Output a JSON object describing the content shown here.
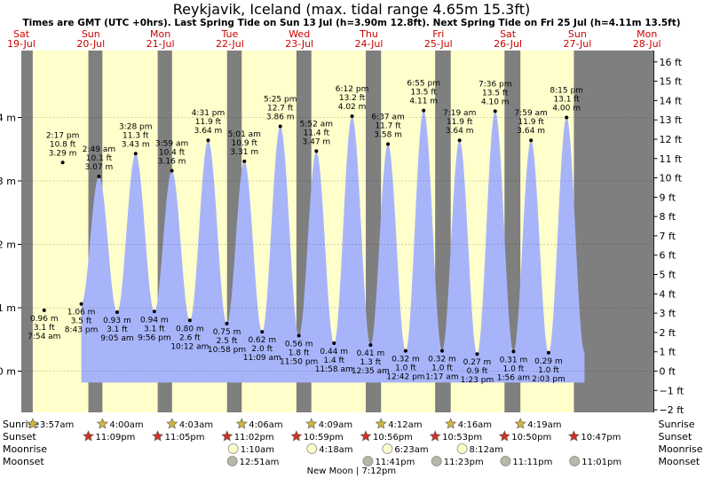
{
  "chart_data": {
    "type": "area",
    "title": "Reykjavik, Iceland (max. tidal range 4.65m 15.3ft)",
    "subtitle": "Times are GMT (UTC +0hrs). Last Spring Tide on Sun 13 Jul (h=3.90m 12.8ft). Next Spring Tide on Fri 25 Jul (h=4.11m 13.5ft)",
    "days": [
      {
        "dow": "Sat",
        "date": "19-Jul"
      },
      {
        "dow": "Sun",
        "date": "20-Jul"
      },
      {
        "dow": "Mon",
        "date": "21-Jul"
      },
      {
        "dow": "Tue",
        "date": "22-Jul"
      },
      {
        "dow": "Wed",
        "date": "23-Jul"
      },
      {
        "dow": "Thu",
        "date": "24-Jul"
      },
      {
        "dow": "Fri",
        "date": "25-Jul"
      },
      {
        "dow": "Sat",
        "date": "26-Jul"
      },
      {
        "dow": "Sun",
        "date": "27-Jul"
      },
      {
        "dow": "Mon",
        "date": "28-Jul"
      }
    ],
    "y_left": {
      "unit": "m",
      "range": [
        -0.6,
        4.95
      ],
      "ticks": [
        0,
        1,
        2,
        3,
        4
      ],
      "tick_labels": [
        "0 m",
        "1 m",
        "2 m",
        "3 m",
        "4 m"
      ]
    },
    "y_right": {
      "unit": "ft",
      "range": [
        -2,
        16
      ],
      "ticks": [
        -2,
        -1,
        0,
        1,
        2,
        3,
        4,
        5,
        6,
        7,
        8,
        9,
        10,
        11,
        12,
        13,
        14,
        15,
        16
      ],
      "tick_labels": [
        "−2 ft",
        "−1 ft",
        "0 ft",
        "1 ft",
        "2 ft",
        "3 ft",
        "4 ft",
        "5 ft",
        "6 ft",
        "7 ft",
        "8 ft",
        "9 ft",
        "10 ft",
        "11 ft",
        "12 ft",
        "13 ft",
        "14 ft",
        "15 ft",
        "16 ft"
      ]
    },
    "tides": [
      {
        "day": 0,
        "time": "7:54 am",
        "type": "low",
        "m": 0.96,
        "labels": [
          "0.96 m",
          "3.1 ft",
          "7:54 am"
        ]
      },
      {
        "day": 0,
        "time": "2:17 pm",
        "type": "high",
        "m": 3.29,
        "labels": [
          "2:17 pm",
          "10.8 ft",
          "3.29 m"
        ]
      },
      {
        "day": 0,
        "time": "8:43 pm",
        "type": "low",
        "m": 1.06,
        "labels": [
          "1.06 m",
          "3.5 ft",
          "8:43 pm"
        ]
      },
      {
        "day": 1,
        "time": "2:49 am",
        "type": "high",
        "m": 3.07,
        "labels": [
          "2:49 am",
          "10.1 ft",
          "3.07 m"
        ]
      },
      {
        "day": 1,
        "time": "9:05 am",
        "type": "low",
        "m": 0.93,
        "labels": [
          "0.93 m",
          "3.1 ft",
          "9:05 am"
        ]
      },
      {
        "day": 1,
        "time": "3:28 pm",
        "type": "high",
        "m": 3.43,
        "labels": [
          "3:28 pm",
          "11.3 ft",
          "3.43 m"
        ]
      },
      {
        "day": 1,
        "time": "9:56 pm",
        "type": "low",
        "m": 0.94,
        "labels": [
          "0.94 m",
          "3.1 ft",
          "9:56 pm"
        ]
      },
      {
        "day": 2,
        "time": "3:59 am",
        "type": "high",
        "m": 3.16,
        "labels": [
          "3:59 am",
          "10.4 ft",
          "3.16 m"
        ]
      },
      {
        "day": 2,
        "time": "10:12 am",
        "type": "low",
        "m": 0.8,
        "labels": [
          "0.80 m",
          "2.6 ft",
          "10:12 am"
        ]
      },
      {
        "day": 2,
        "time": "4:31 pm",
        "type": "high",
        "m": 3.64,
        "labels": [
          "4:31 pm",
          "11.9 ft",
          "3.64 m"
        ]
      },
      {
        "day": 2,
        "time": "10:58 pm",
        "type": "low",
        "m": 0.75,
        "labels": [
          "0.75 m",
          "2.5 ft",
          "10:58 pm"
        ]
      },
      {
        "day": 3,
        "time": "5:01 am",
        "type": "high",
        "m": 3.31,
        "labels": [
          "5:01 am",
          "10.9 ft",
          "3.31 m"
        ]
      },
      {
        "day": 3,
        "time": "11:09 am",
        "type": "low",
        "m": 0.62,
        "labels": [
          "0.62 m",
          "2.0 ft",
          "11:09 am"
        ]
      },
      {
        "day": 3,
        "time": "5:25 pm",
        "type": "high",
        "m": 3.86,
        "labels": [
          "5:25 pm",
          "12.7 ft",
          "3.86 m"
        ]
      },
      {
        "day": 3,
        "time": "11:50 pm",
        "type": "low",
        "m": 0.56,
        "labels": [
          "0.56 m",
          "1.8 ft",
          "11:50 pm"
        ]
      },
      {
        "day": 4,
        "time": "5:52 am",
        "type": "high",
        "m": 3.47,
        "labels": [
          "5:52 am",
          "11.4 ft",
          "3.47 m"
        ]
      },
      {
        "day": 4,
        "time": "11:58 am",
        "type": "low",
        "m": 0.44,
        "labels": [
          "0.44 m",
          "1.4 ft",
          "11:58 am"
        ]
      },
      {
        "day": 4,
        "time": "6:12 pm",
        "type": "high",
        "m": 4.02,
        "labels": [
          "6:12 pm",
          "13.2 ft",
          "4.02 m"
        ]
      },
      {
        "day": 5,
        "time": "12:35 am",
        "type": "low",
        "m": 0.41,
        "labels": [
          "0.41 m",
          "1.3 ft",
          "12:35 am"
        ]
      },
      {
        "day": 5,
        "time": "6:37 am",
        "type": "high",
        "m": 3.58,
        "labels": [
          "6:37 am",
          "11.7 ft",
          "3.58 m"
        ]
      },
      {
        "day": 5,
        "time": "12:42 pm",
        "type": "low",
        "m": 0.32,
        "labels": [
          "0.32 m",
          "1.0 ft",
          "12:42 pm"
        ]
      },
      {
        "day": 5,
        "time": "6:55 pm",
        "type": "high",
        "m": 4.11,
        "labels": [
          "6:55 pm",
          "13.5 ft",
          "4.11 m"
        ]
      },
      {
        "day": 6,
        "time": "1:17 am",
        "type": "low",
        "m": 0.32,
        "labels": [
          "0.32 m",
          "1.0 ft",
          "1:17 am"
        ]
      },
      {
        "day": 6,
        "time": "7:19 am",
        "type": "high",
        "m": 3.64,
        "labels": [
          "7:19 am",
          "11.9 ft",
          "3.64 m"
        ]
      },
      {
        "day": 6,
        "time": "1:23 pm",
        "type": "low",
        "m": 0.27,
        "labels": [
          "0.27 m",
          "0.9 ft",
          "1:23 pm"
        ]
      },
      {
        "day": 6,
        "time": "7:36 pm",
        "type": "high",
        "m": 4.1,
        "labels": [
          "7:36 pm",
          "13.5 ft",
          "4.10 m"
        ]
      },
      {
        "day": 7,
        "time": "1:56 am",
        "type": "low",
        "m": 0.31,
        "labels": [
          "0.31 m",
          "1.0 ft",
          "1:56 am"
        ]
      },
      {
        "day": 7,
        "time": "7:59 am",
        "type": "high",
        "m": 3.64,
        "labels": [
          "7:59 am",
          "11.9 ft",
          "3.64 m"
        ]
      },
      {
        "day": 7,
        "time": "2:03 pm",
        "type": "low",
        "m": 0.29,
        "labels": [
          "0.29 m",
          "1.0 ft",
          "2:03 pm"
        ]
      },
      {
        "day": 7,
        "time": "8:15 pm",
        "type": "high",
        "m": 4.0,
        "labels": [
          "8:15 pm",
          "13.1 ft",
          "4.00 m"
        ]
      }
    ],
    "sun_moon": {
      "row_labels": [
        "Sunrise",
        "Sunset",
        "Moonrise",
        "Moonset"
      ],
      "sunrise": [
        {
          "day": 0,
          "time": "3:57am"
        },
        {
          "day": 1,
          "time": "4:00am"
        },
        {
          "day": 2,
          "time": "4:03am"
        },
        {
          "day": 3,
          "time": "4:06am"
        },
        {
          "day": 4,
          "time": "4:09am"
        },
        {
          "day": 5,
          "time": "4:12am"
        },
        {
          "day": 6,
          "time": "4:16am"
        },
        {
          "day": 7,
          "time": "4:19am"
        }
      ],
      "sunset": [
        {
          "day": 0,
          "time": "11:09pm"
        },
        {
          "day": 1,
          "time": "11:05pm"
        },
        {
          "day": 2,
          "time": "11:02pm"
        },
        {
          "day": 3,
          "time": "10:59pm"
        },
        {
          "day": 4,
          "time": "10:56pm"
        },
        {
          "day": 5,
          "time": "10:53pm"
        },
        {
          "day": 6,
          "time": "10:50pm"
        },
        {
          "day": 7,
          "time": "10:47pm"
        }
      ],
      "moonrise": [
        {
          "day": 3,
          "time": "1:10am"
        },
        {
          "day": 4,
          "time": "4:18am"
        },
        {
          "day": 5,
          "time": "6:23am"
        },
        {
          "day": 6,
          "time": "8:12am"
        }
      ],
      "moonset": [
        {
          "day": 3,
          "time": "12:51am"
        },
        {
          "day": 4,
          "time": "11:41pm"
        },
        {
          "day": 5,
          "time": "11:23pm"
        },
        {
          "day": 6,
          "time": "11:11pm"
        },
        {
          "day": 7,
          "time": "11:01pm"
        }
      ],
      "moon_phase": "New Moon | 7:12pm"
    },
    "colors": {
      "night": "#7f7f7f",
      "day": "#ffffcc",
      "water": "#a8b4fa",
      "title": "#000000",
      "day_header": "#cc0000",
      "sun_fill": "#d4b43c",
      "sunset_fill": "#cc3322",
      "moon_fill": "#ffffcc",
      "moonset_fill": "#b8b8a8"
    }
  }
}
